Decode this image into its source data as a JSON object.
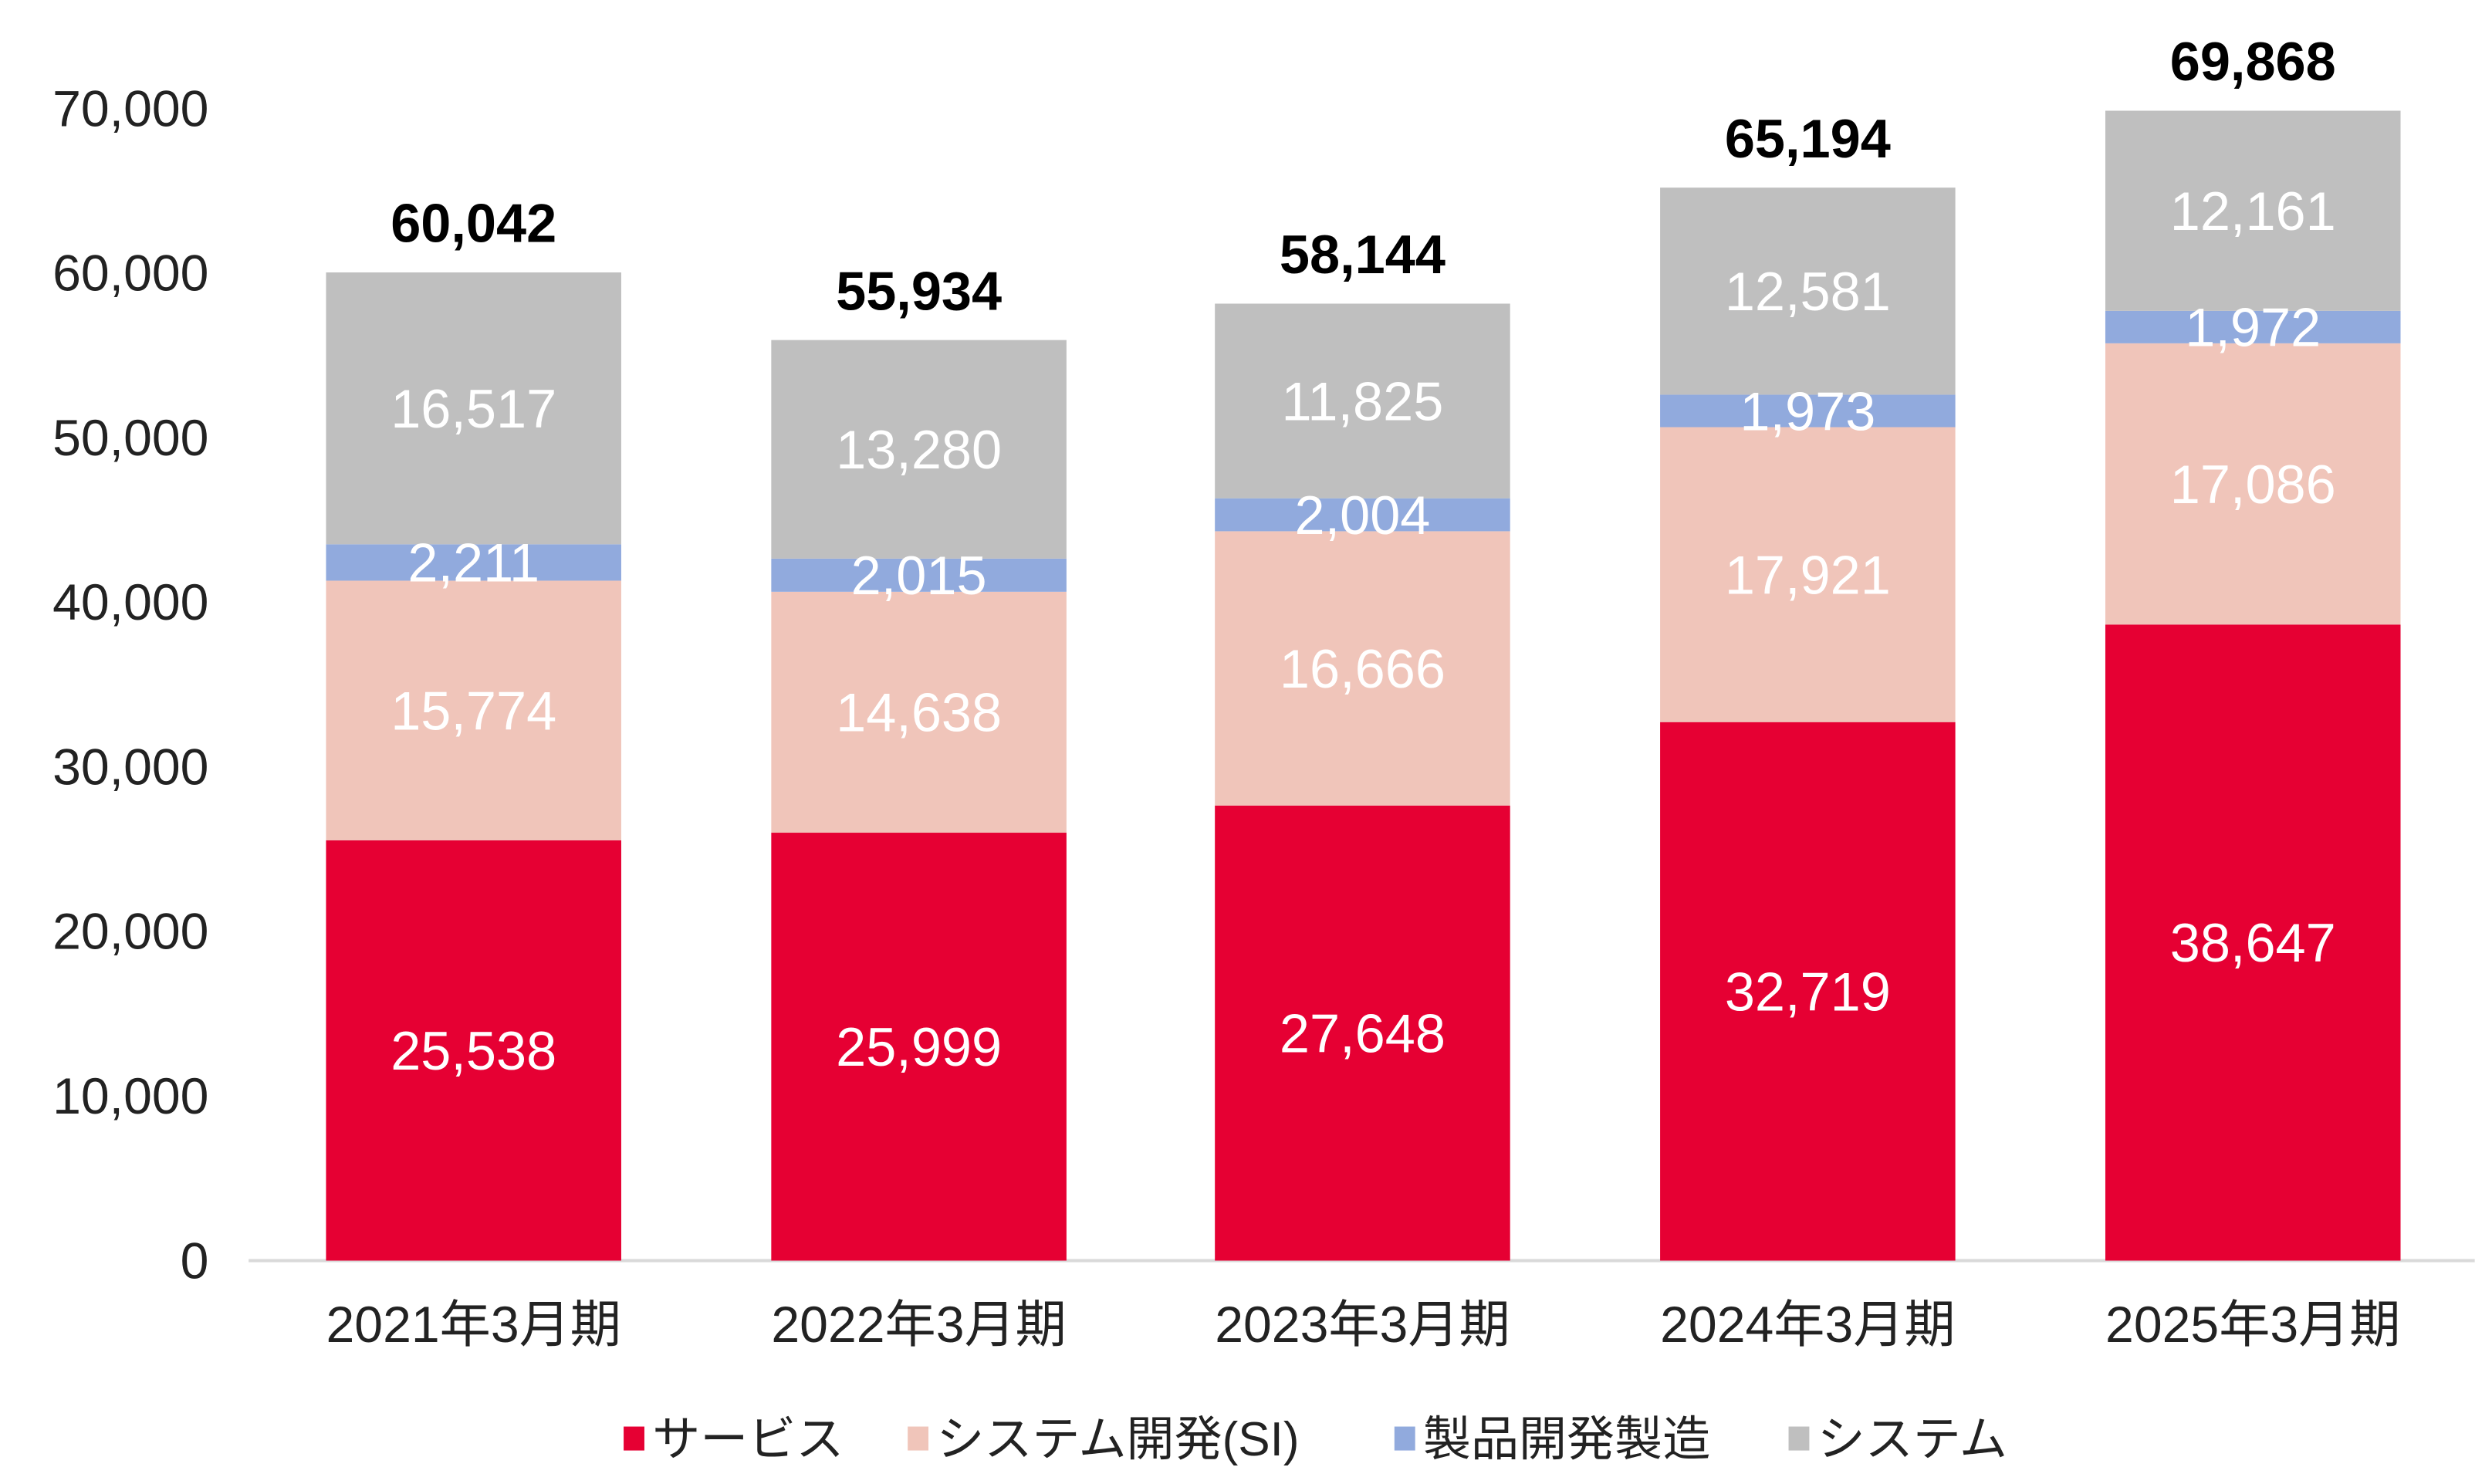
{
  "chart_data": {
    "type": "bar",
    "stacked": true,
    "categories": [
      "2021年3月期",
      "2022年3月期",
      "2023年3月期",
      "2024年3月期",
      "2025年3月期"
    ],
    "series": [
      {
        "name": "サービス",
        "color": "#E60033",
        "values": [
          25538,
          25999,
          27648,
          32719,
          38647
        ],
        "labels": [
          "25,538",
          "25,999",
          "27,648",
          "32,719",
          "38,647"
        ]
      },
      {
        "name": "システム開発(SI)",
        "color": "#F0C5BA",
        "values": [
          15774,
          14638,
          16666,
          17921,
          17086
        ],
        "labels": [
          "15,774",
          "14,638",
          "16,666",
          "17,921",
          "17,086"
        ]
      },
      {
        "name": "製品開発製造",
        "color": "#91AADD",
        "values": [
          2211,
          2015,
          2004,
          1973,
          1972
        ],
        "labels": [
          "2,211",
          "2,015",
          "2,004",
          "1,973",
          "1,972"
        ]
      },
      {
        "name": "システム",
        "color": "#BFBFBF",
        "values": [
          16517,
          13280,
          11825,
          12581,
          12161
        ],
        "labels": [
          "16,517",
          "13,280",
          "11,825",
          "12,581",
          "12,161"
        ]
      }
    ],
    "totals": [
      60042,
      55934,
      58144,
      65194,
      69868
    ],
    "total_labels": [
      "60,042",
      "55,934",
      "58,144",
      "65,194",
      "69,868"
    ],
    "y_ticks": [
      "0",
      "10,000",
      "20,000",
      "30,000",
      "40,000",
      "50,000",
      "60,000",
      "70,000"
    ],
    "ylim": [
      0,
      70000
    ],
    "grid": false,
    "legend_position": "bottom",
    "title": "",
    "xlabel": "",
    "ylabel": ""
  }
}
